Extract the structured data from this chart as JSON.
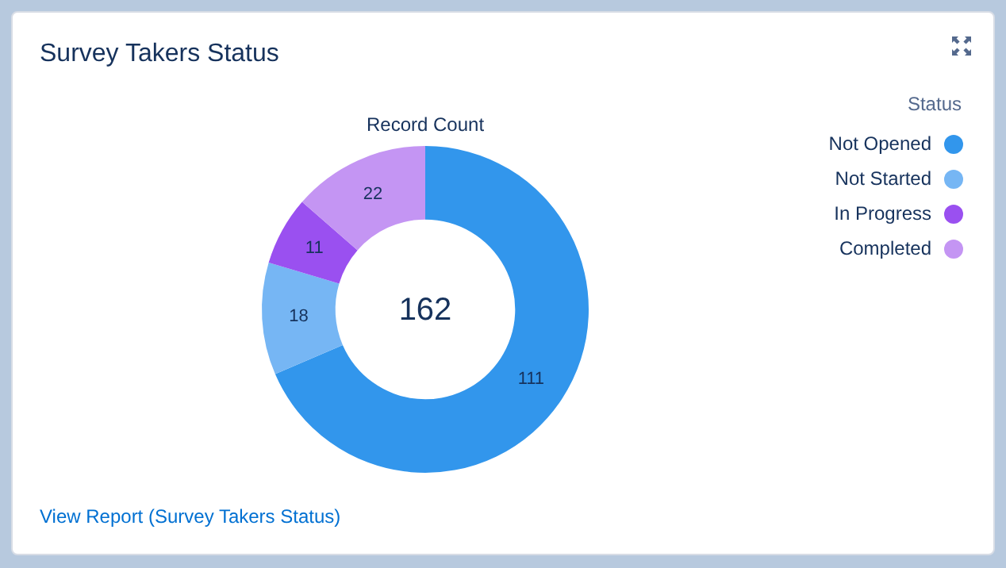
{
  "chart_data": {
    "type": "donut",
    "title": "Survey Takers Status",
    "subtitle": "Record Count",
    "legend_title": "Status",
    "legend": "top right",
    "data_labels": true,
    "categories": [
      "Not Opened",
      "Not Started",
      "In Progress",
      "Completed"
    ],
    "values": [
      111,
      18,
      11,
      22
    ],
    "colors": [
      "#3296ec",
      "#76b6f4",
      "#9a50f0",
      "#c495f3"
    ],
    "annotations": [
      "162",
      "View Report (Survey Takers Status)"
    ]
  }
}
